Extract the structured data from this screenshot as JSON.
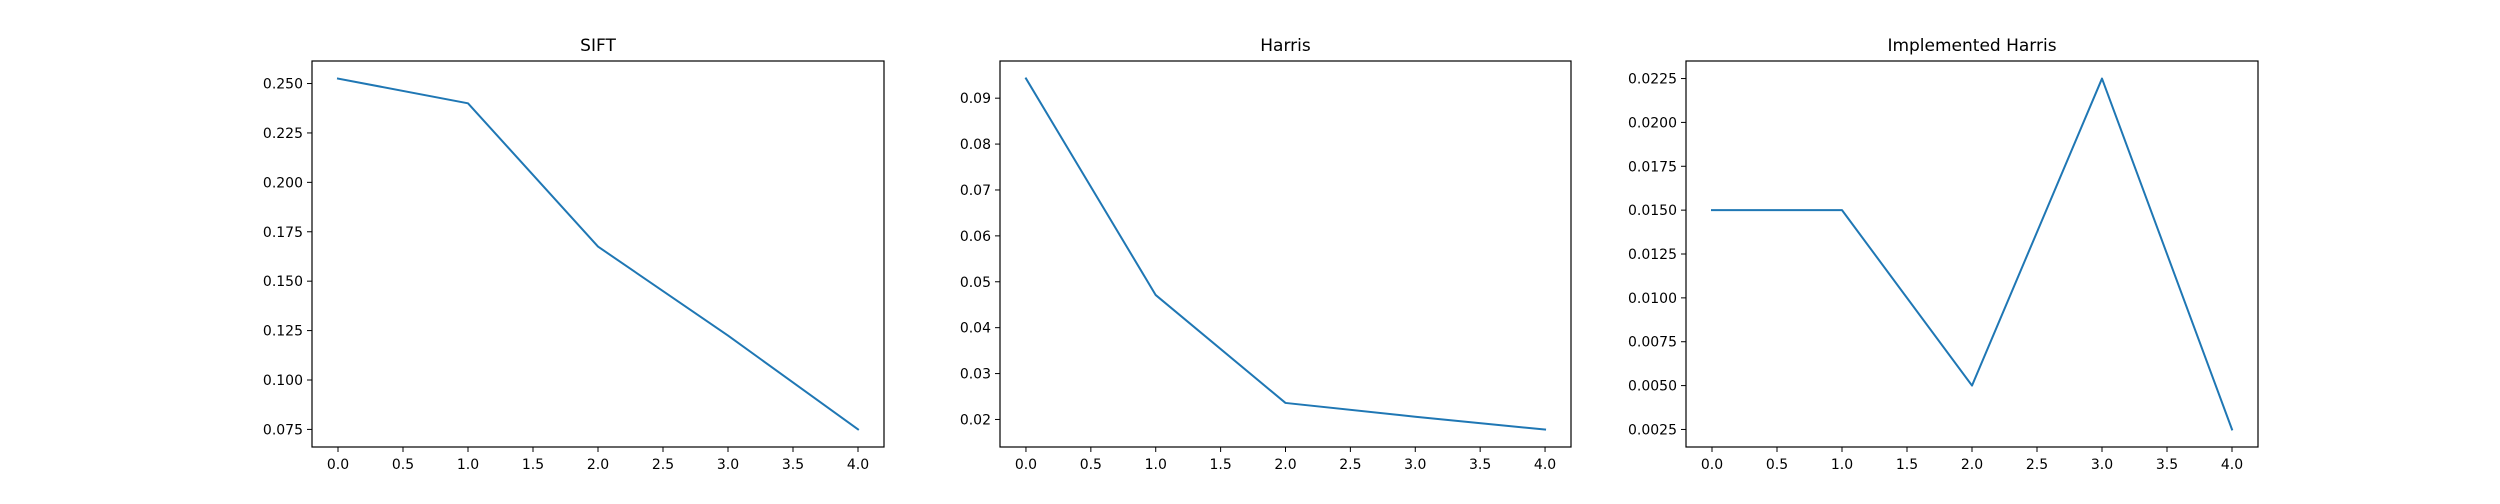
{
  "chart_data": [
    {
      "type": "line",
      "title": "SIFT",
      "xlabel": "",
      "ylabel": "",
      "x": [
        0,
        1,
        2,
        3,
        4
      ],
      "series": [
        {
          "values": [
            0.2525,
            0.24,
            0.1675,
            0.1225,
            0.075
          ]
        }
      ],
      "xlim": [
        -0.2,
        4.2
      ],
      "ylim": [
        0.0661,
        0.2614
      ],
      "xticks": [
        0.0,
        0.5,
        1.0,
        1.5,
        2.0,
        2.5,
        3.0,
        3.5,
        4.0
      ],
      "xtick_labels": [
        "0.0",
        "0.5",
        "1.0",
        "1.5",
        "2.0",
        "2.5",
        "3.0",
        "3.5",
        "4.0"
      ],
      "yticks": [
        0.075,
        0.1,
        0.125,
        0.15,
        0.175,
        0.2,
        0.225,
        0.25
      ],
      "ytick_labels": [
        "0.075",
        "0.100",
        "0.125",
        "0.150",
        "0.175",
        "0.200",
        "0.225",
        "0.250"
      ],
      "grid": false,
      "line_color": "#1f77b4"
    },
    {
      "type": "line",
      "title": "Harris",
      "xlabel": "",
      "ylabel": "",
      "x": [
        0,
        1,
        2,
        3,
        4
      ],
      "series": [
        {
          "values": [
            0.0943,
            0.0471,
            0.0236,
            0.0206,
            0.0178
          ]
        }
      ],
      "xlim": [
        -0.2,
        4.2
      ],
      "ylim": [
        0.014,
        0.0981
      ],
      "xticks": [
        0.0,
        0.5,
        1.0,
        1.5,
        2.0,
        2.5,
        3.0,
        3.5,
        4.0
      ],
      "xtick_labels": [
        "0.0",
        "0.5",
        "1.0",
        "1.5",
        "2.0",
        "2.5",
        "3.0",
        "3.5",
        "4.0"
      ],
      "yticks": [
        0.02,
        0.03,
        0.04,
        0.05,
        0.06,
        0.07,
        0.08,
        0.09
      ],
      "ytick_labels": [
        "0.02",
        "0.03",
        "0.04",
        "0.05",
        "0.06",
        "0.07",
        "0.08",
        "0.09"
      ],
      "grid": false,
      "line_color": "#1f77b4"
    },
    {
      "type": "line",
      "title": "Implemented Harris",
      "xlabel": "",
      "ylabel": "",
      "x": [
        0,
        1,
        2,
        3,
        4
      ],
      "series": [
        {
          "values": [
            0.015,
            0.015,
            0.005,
            0.0225,
            0.0025
          ]
        }
      ],
      "xlim": [
        -0.2,
        4.2
      ],
      "ylim": [
        0.0015,
        0.0235
      ],
      "xticks": [
        0.0,
        0.5,
        1.0,
        1.5,
        2.0,
        2.5,
        3.0,
        3.5,
        4.0
      ],
      "xtick_labels": [
        "0.0",
        "0.5",
        "1.0",
        "1.5",
        "2.0",
        "2.5",
        "3.0",
        "3.5",
        "4.0"
      ],
      "yticks": [
        0.0025,
        0.005,
        0.0075,
        0.01,
        0.0125,
        0.015,
        0.0175,
        0.02,
        0.0225
      ],
      "ytick_labels": [
        "0.0025",
        "0.0050",
        "0.0075",
        "0.0100",
        "0.0125",
        "0.0150",
        "0.0175",
        "0.0200",
        "0.0225"
      ],
      "grid": false,
      "line_color": "#1f77b4"
    }
  ]
}
